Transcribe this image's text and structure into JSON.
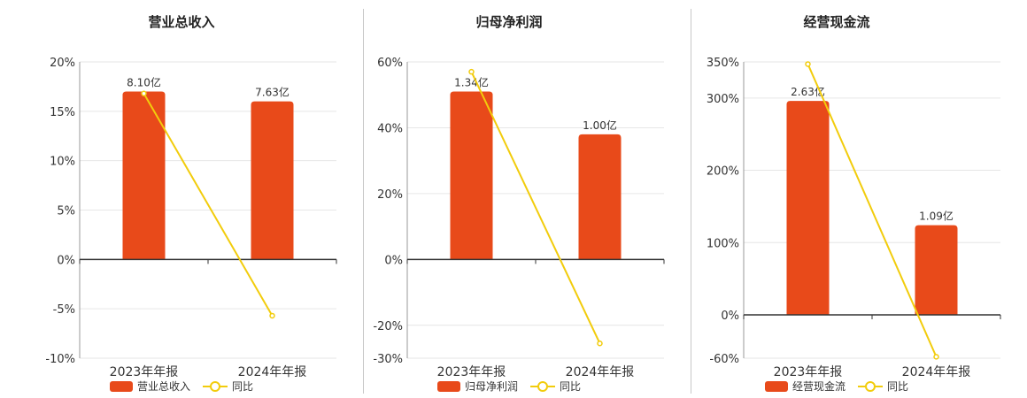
{
  "colors": {
    "bar": "#E84A1A",
    "line": "#F2CC0C",
    "grid": "#e6e6e6",
    "axis": "#333333"
  },
  "legend_line_label": "同比",
  "chart_data": [
    {
      "type": "bar",
      "title": "营业总收入",
      "categories": [
        "2023年年报",
        "2024年年报"
      ],
      "series": [
        {
          "name": "营业总收入",
          "type": "bar",
          "values": [
            17.0,
            16.0
          ],
          "labels": [
            "8.10亿",
            "7.63亿"
          ]
        },
        {
          "name": "同比",
          "type": "line",
          "values": [
            16.8,
            -5.7
          ]
        }
      ],
      "ylim": [
        -10,
        20
      ],
      "yticks": [
        -10,
        -5,
        0,
        5,
        10,
        15,
        20
      ],
      "ytick_labels": [
        "-10%",
        "-5%",
        "0%",
        "5%",
        "10%",
        "15%",
        "20%"
      ],
      "grid": true,
      "legend": "bottom"
    },
    {
      "type": "bar",
      "title": "归母净利润",
      "categories": [
        "2023年年报",
        "2024年年报"
      ],
      "series": [
        {
          "name": "归母净利润",
          "type": "bar",
          "values": [
            51.0,
            38.0
          ],
          "labels": [
            "1.34亿",
            "1.00亿"
          ]
        },
        {
          "name": "同比",
          "type": "line",
          "values": [
            57.0,
            -25.5
          ]
        }
      ],
      "ylim": [
        -30,
        60
      ],
      "yticks": [
        -30,
        -20,
        0,
        20,
        40,
        60
      ],
      "ytick_labels": [
        "-30%",
        "-20%",
        "0%",
        "20%",
        "40%",
        "60%"
      ],
      "grid": true,
      "legend": "bottom"
    },
    {
      "type": "bar",
      "title": "经营现金流",
      "categories": [
        "2023年年报",
        "2024年年报"
      ],
      "series": [
        {
          "name": "经营现金流",
          "type": "bar",
          "values": [
            296.0,
            124.0
          ],
          "labels": [
            "2.63亿",
            "1.09亿"
          ]
        },
        {
          "name": "同比",
          "type": "line",
          "values": [
            347.0,
            -58.0
          ]
        }
      ],
      "ylim": [
        -60,
        350
      ],
      "yticks": [
        -60,
        0,
        100,
        200,
        300,
        350
      ],
      "ytick_labels": [
        "-60%",
        "0%",
        "100%",
        "200%",
        "300%",
        "350%"
      ],
      "grid": true,
      "legend": "bottom"
    }
  ]
}
